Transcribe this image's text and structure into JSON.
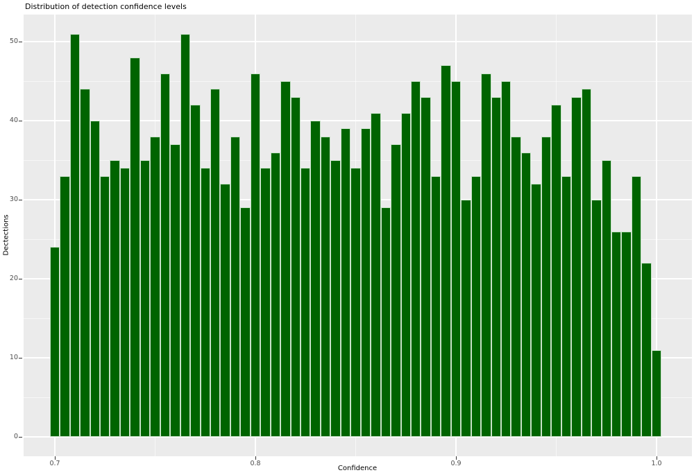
{
  "chart_data": {
    "type": "bar",
    "subtype": "histogram",
    "title": "Distribution of detection confidence levels",
    "xlabel": "Confidence",
    "ylabel": "Dectections",
    "bin_width": 0.005,
    "bin_centers": [
      0.7,
      0.705,
      0.71,
      0.715,
      0.72,
      0.725,
      0.73,
      0.735,
      0.74,
      0.745,
      0.75,
      0.755,
      0.76,
      0.765,
      0.77,
      0.775,
      0.78,
      0.785,
      0.79,
      0.795,
      0.8,
      0.805,
      0.81,
      0.815,
      0.82,
      0.825,
      0.83,
      0.835,
      0.84,
      0.845,
      0.85,
      0.855,
      0.86,
      0.865,
      0.87,
      0.875,
      0.88,
      0.885,
      0.89,
      0.895,
      0.9,
      0.905,
      0.91,
      0.915,
      0.92,
      0.925,
      0.93,
      0.935,
      0.94,
      0.945,
      0.95,
      0.955,
      0.96,
      0.965,
      0.97,
      0.975,
      0.98,
      0.985,
      0.99,
      0.995,
      1.0
    ],
    "values": [
      24,
      33,
      51,
      44,
      40,
      33,
      35,
      34,
      48,
      35,
      38,
      46,
      37,
      51,
      42,
      34,
      44,
      32,
      38,
      29,
      46,
      34,
      36,
      45,
      43,
      34,
      40,
      38,
      35,
      39,
      34,
      39,
      41,
      29,
      37,
      41,
      45,
      43,
      33,
      47,
      45,
      30,
      33,
      46,
      43,
      45,
      38,
      36,
      32,
      38,
      42,
      33,
      43,
      44,
      30,
      35,
      26,
      26,
      33,
      22,
      11
    ],
    "x_tick_labels": [
      "0.7",
      "0.8",
      "0.9",
      "1.0"
    ],
    "x_tick_values": [
      0.7,
      0.8,
      0.9,
      1.0
    ],
    "x_minor_values": [
      0.75,
      0.85,
      0.95
    ],
    "y_tick_labels": [
      "0",
      "10",
      "20",
      "30",
      "40",
      "50"
    ],
    "y_tick_values": [
      0,
      10,
      20,
      30,
      40,
      50
    ],
    "y_minor_values": [
      5,
      15,
      25,
      35,
      45
    ],
    "xlim": [
      0.684,
      1.018
    ],
    "ylim": [
      -2.5,
      53.5
    ],
    "grid": "major+minor",
    "legend": "none",
    "colors": {
      "bar_fill": "#006400",
      "bar_edge": "#ebf8eb",
      "panel_background": "#ebebeb",
      "gridline": "#ffffff",
      "tick_label": "#4d4d4d",
      "tick_mark": "#333333",
      "axis_title": "#000000",
      "title": "#000000",
      "page_background": "#ffffff"
    }
  }
}
